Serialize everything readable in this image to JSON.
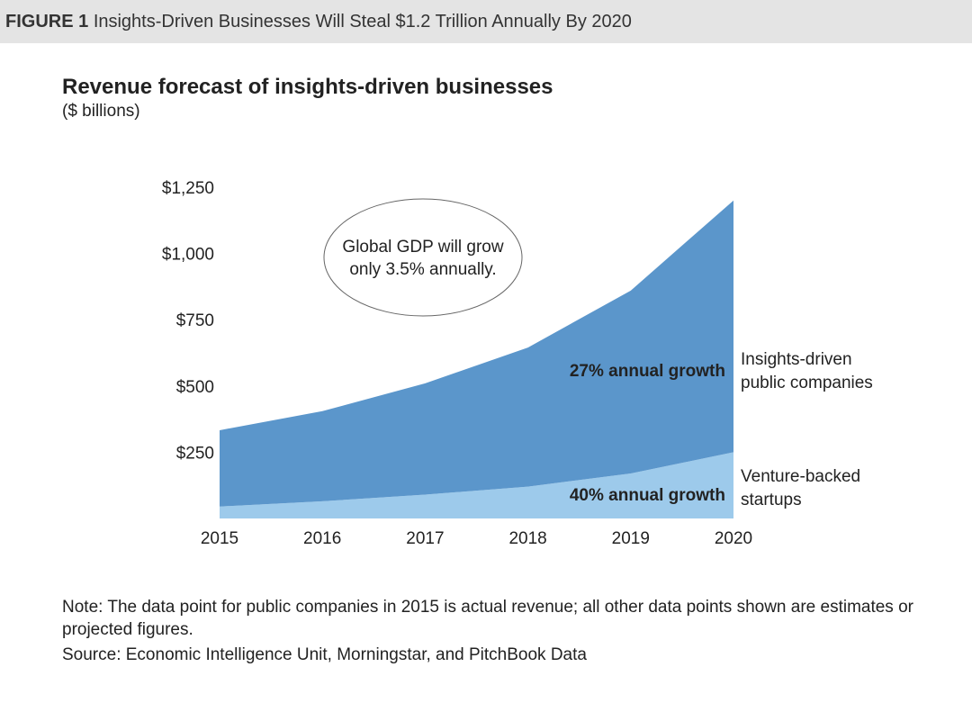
{
  "header": {
    "figure_label": "FIGURE 1",
    "figure_title": "Insights-Driven Businesses Will Steal $1.2 Trillion Annually By 2020"
  },
  "chart_data": {
    "type": "area",
    "title": "Revenue forecast of insights-driven businesses",
    "subtitle": "($ billions)",
    "x": [
      "2015",
      "2016",
      "2017",
      "2018",
      "2019",
      "2020"
    ],
    "y_ticks": [
      {
        "value": 250,
        "label": "$250"
      },
      {
        "value": 500,
        "label": "$500"
      },
      {
        "value": 750,
        "label": "$750"
      },
      {
        "value": 1000,
        "label": "$1,000"
      },
      {
        "value": 1250,
        "label": "$1,250"
      }
    ],
    "ylim": [
      0,
      1250
    ],
    "stacked": true,
    "series": [
      {
        "name": "Venture-backed startups",
        "label_lines": [
          "Venture-backed",
          "startups"
        ],
        "values": [
          45,
          65,
          90,
          120,
          170,
          250
        ],
        "color": "#9dcaeb",
        "annotation": "40% annual growth"
      },
      {
        "name": "Insights-driven public companies",
        "label_lines": [
          "Insights-driven",
          "public companies"
        ],
        "values": [
          288,
          340,
          420,
          525,
          690,
          950
        ],
        "color": "#5b96cb",
        "annotation": "27% annual growth"
      }
    ],
    "callout": {
      "lines": [
        "Global GDP will grow",
        "only 3.5% annually."
      ]
    },
    "grid": false
  },
  "footer": {
    "note_text": "Note: The data point for public companies in 2015 is actual revenue; all other data points shown are estimates or projected figures.",
    "source_text": "Source: Economic Intelligence Unit, Morningstar, and PitchBook Data"
  }
}
